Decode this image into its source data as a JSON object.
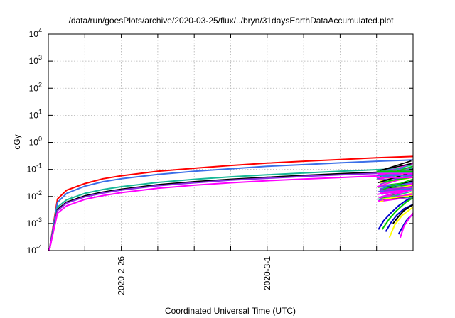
{
  "chart_data": {
    "type": "line",
    "title": "/data/run/goesPlots/archive/2020-03-25/flux/../bryn/31daysEarthDataAccumulated.plot",
    "xlabel": "Coordinated Universal Time (UTC)",
    "ylabel": "cGy",
    "y_scale": "log",
    "ylim": [
      0.0001,
      10000
    ],
    "xlim_days": [
      0,
      20
    ],
    "x_ticks": [
      {
        "label": "2020-2-26",
        "day": 4
      },
      {
        "label": "2020-3-1",
        "day": 12
      }
    ],
    "y_ticks": [
      {
        "exp": "-4",
        "value": 0.0001
      },
      {
        "exp": "-3",
        "value": 0.001
      },
      {
        "exp": "-2",
        "value": 0.01
      },
      {
        "exp": "-1",
        "value": 0.1
      },
      {
        "exp": "0",
        "value": 1
      },
      {
        "exp": "1",
        "value": 10
      },
      {
        "exp": "2",
        "value": 100
      },
      {
        "exp": "3",
        "value": 1000
      },
      {
        "exp": "4",
        "value": 10000
      }
    ],
    "grid": true,
    "series": [
      {
        "color": "#ff0000",
        "x": [
          0.05,
          0.5,
          1,
          2,
          3,
          4,
          6,
          8,
          10,
          12,
          14,
          16,
          18,
          20
        ],
        "values": [
          0.0001,
          0.008,
          0.017,
          0.03,
          0.045,
          0.058,
          0.085,
          0.11,
          0.14,
          0.17,
          0.2,
          0.23,
          0.27,
          0.3
        ]
      },
      {
        "color": "#3b6fe8",
        "x": [
          0.05,
          0.5,
          1,
          2,
          3,
          4,
          6,
          8,
          10,
          12,
          14,
          16,
          18,
          20
        ],
        "values": [
          0.0001,
          0.006,
          0.013,
          0.024,
          0.035,
          0.045,
          0.065,
          0.085,
          0.105,
          0.13,
          0.15,
          0.175,
          0.2,
          0.225
        ]
      },
      {
        "color": "#17b897",
        "x": [
          0.05,
          0.5,
          1,
          2,
          3,
          4,
          6,
          8,
          10,
          12,
          14,
          16,
          18,
          20
        ],
        "values": [
          0.0001,
          0.004,
          0.0075,
          0.013,
          0.018,
          0.023,
          0.033,
          0.043,
          0.053,
          0.063,
          0.073,
          0.085,
          0.098,
          0.11
        ]
      },
      {
        "color": "#000000",
        "x": [
          0.05,
          0.5,
          1,
          2,
          3,
          4,
          6,
          8,
          10,
          12,
          14,
          16,
          18,
          20
        ],
        "values": [
          0.0001,
          0.0033,
          0.0062,
          0.0105,
          0.0145,
          0.0185,
          0.027,
          0.035,
          0.043,
          0.051,
          0.06,
          0.069,
          0.078,
          0.087
        ]
      },
      {
        "color": "#8a2be2",
        "x": [
          0.05,
          0.5,
          1,
          2,
          3,
          4,
          6,
          8,
          10,
          12,
          14,
          16,
          18,
          20
        ],
        "values": [
          0.0001,
          0.003,
          0.0057,
          0.0097,
          0.0134,
          0.0172,
          0.025,
          0.032,
          0.04,
          0.047,
          0.055,
          0.063,
          0.071,
          0.08
        ]
      },
      {
        "color": "#ff00ff",
        "x": [
          0.05,
          0.5,
          1,
          2,
          3,
          4,
          6,
          8,
          10,
          12,
          14,
          16,
          18,
          20
        ],
        "values": [
          0.0001,
          0.0024,
          0.0045,
          0.0078,
          0.0108,
          0.0138,
          0.02,
          0.026,
          0.032,
          0.038,
          0.044,
          0.05,
          0.057,
          0.064
        ]
      },
      {
        "color": "#0000cd",
        "x": [
          18.1,
          18.4,
          18.8,
          19.2,
          19.6,
          20
        ],
        "values": [
          0.0006,
          0.0013,
          0.0025,
          0.0045,
          0.007,
          0.01
        ]
      },
      {
        "color": "#0000cd",
        "x": [
          18.5,
          18.8,
          19.1,
          19.5,
          20
        ],
        "values": [
          0.0005,
          0.0011,
          0.002,
          0.0035,
          0.005
        ]
      },
      {
        "color": "#0000cd",
        "x": [
          19.2,
          19.4,
          19.6,
          19.8,
          20
        ],
        "values": [
          0.0004,
          0.0007,
          0.0012,
          0.0017,
          0.0022
        ]
      },
      {
        "color": "#00cc00",
        "x": [
          18.3,
          18.7,
          19.1,
          19.6,
          20
        ],
        "values": [
          0.0006,
          0.0015,
          0.003,
          0.006,
          0.009
        ]
      },
      {
        "color": "#ffff00",
        "x": [
          18.7,
          19,
          19.4,
          20
        ],
        "values": [
          0.0003,
          0.0009,
          0.002,
          0.004
        ]
      },
      {
        "color": "#ff00ff",
        "x": [
          19.3,
          19.5,
          19.8,
          20
        ],
        "values": [
          0.0003,
          0.0008,
          0.0016,
          0.0024
        ]
      },
      {
        "color": "#000000",
        "x": [
          18.9,
          19.2,
          19.5,
          20
        ],
        "values": [
          0.001,
          0.0018,
          0.003,
          0.005
        ]
      }
    ]
  }
}
